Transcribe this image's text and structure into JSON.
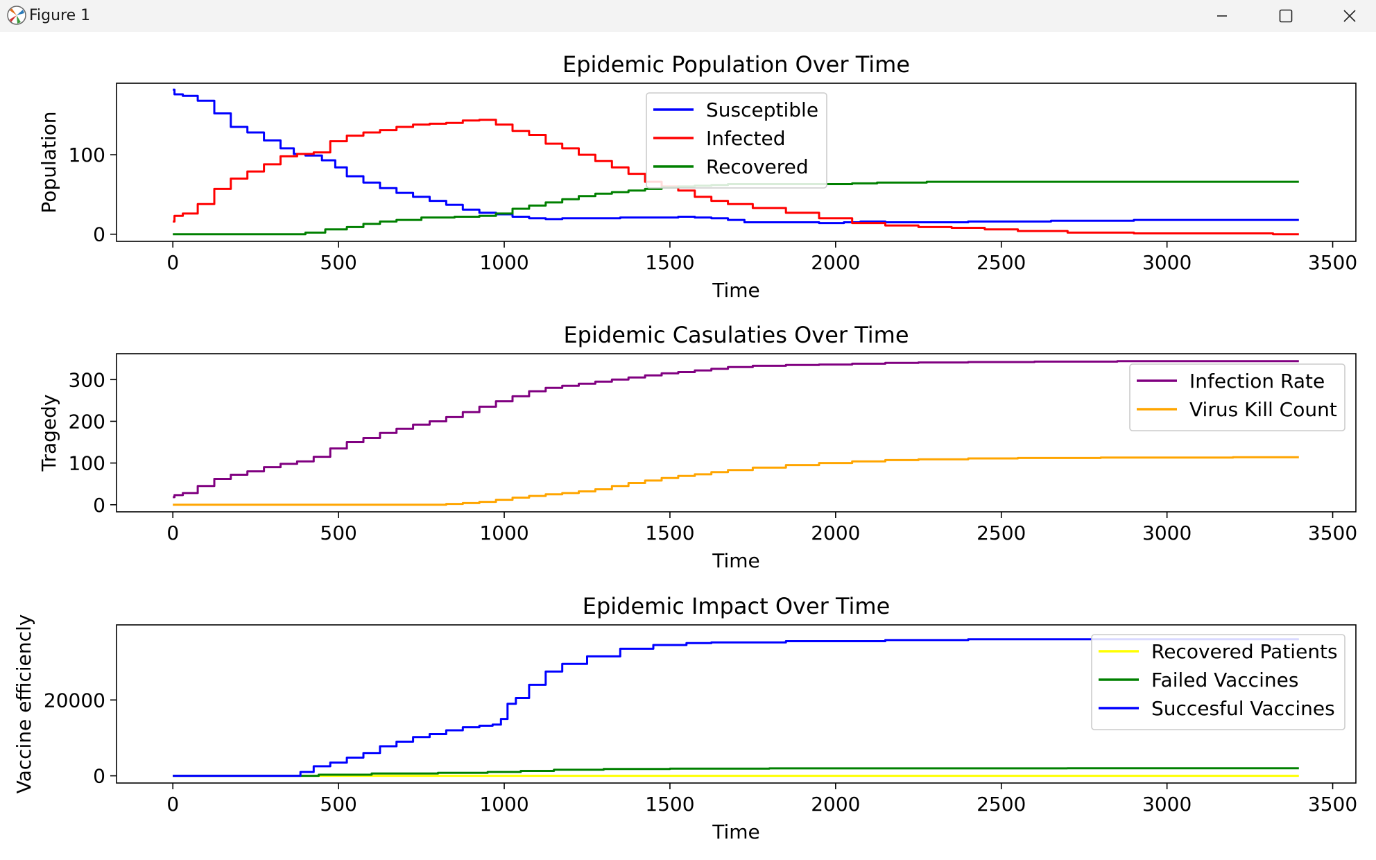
{
  "window": {
    "title": "Figure 1",
    "controls": {
      "minimize": "minimize-icon",
      "maximize": "maximize-icon",
      "close": "close-icon"
    }
  },
  "chart_data": [
    {
      "type": "line",
      "title": "Epidemic Population Over Time",
      "xlabel": "Time",
      "ylabel": "Population",
      "xlim": [
        -170,
        3570
      ],
      "ylim": [
        -9,
        190
      ],
      "xticks": [
        0,
        500,
        1000,
        1500,
        2000,
        2500,
        3000,
        3500
      ],
      "yticks": [
        0,
        100
      ],
      "grid": false,
      "legend_position": "top-center",
      "series": [
        {
          "name": "Susceptible",
          "color": "#0000ff",
          "x": [
            0,
            10,
            50,
            100,
            150,
            200,
            250,
            300,
            350,
            380,
            420,
            480,
            500,
            550,
            600,
            650,
            700,
            750,
            800,
            850,
            900,
            950,
            1000,
            1050,
            1100,
            1150,
            1200,
            1300,
            1400,
            1500,
            1550,
            1600,
            1650,
            1700,
            1750,
            1800,
            1900,
            2000,
            2050,
            2100,
            2200,
            2300,
            2500,
            2800,
            3000,
            3398
          ],
          "y": [
            182,
            176,
            174,
            168,
            152,
            135,
            128,
            118,
            108,
            101,
            99,
            93,
            84,
            73,
            65,
            58,
            52,
            47,
            42,
            37,
            31,
            27,
            25,
            22,
            20,
            19,
            20,
            20,
            21,
            21,
            22,
            21,
            20,
            18,
            15,
            15,
            15,
            14,
            15,
            16,
            15,
            15,
            16,
            17,
            18,
            18
          ]
        },
        {
          "name": "Infected",
          "color": "#ff0000",
          "x": [
            0,
            10,
            50,
            100,
            150,
            200,
            250,
            300,
            350,
            400,
            450,
            500,
            550,
            600,
            650,
            700,
            750,
            800,
            850,
            900,
            950,
            1000,
            1050,
            1100,
            1150,
            1200,
            1250,
            1300,
            1350,
            1400,
            1450,
            1500,
            1550,
            1600,
            1650,
            1700,
            1800,
            1900,
            2000,
            2100,
            2200,
            2300,
            2400,
            2500,
            2600,
            2800,
            3000,
            3300,
            3340,
            3398
          ],
          "y": [
            16,
            23,
            26,
            38,
            57,
            70,
            79,
            88,
            98,
            101,
            103,
            117,
            124,
            128,
            131,
            135,
            138,
            139,
            140,
            143,
            144,
            138,
            130,
            125,
            114,
            108,
            100,
            92,
            84,
            76,
            66,
            60,
            55,
            47,
            42,
            38,
            33,
            27,
            20,
            14,
            11,
            9,
            8,
            6,
            4,
            2,
            1,
            1,
            0,
            0
          ]
        },
        {
          "name": "Recovered",
          "color": "#008000",
          "x": [
            0,
            380,
            420,
            500,
            550,
            600,
            650,
            700,
            800,
            900,
            950,
            1000,
            1050,
            1100,
            1150,
            1200,
            1250,
            1300,
            1350,
            1400,
            1450,
            1500,
            1550,
            1600,
            1650,
            1700,
            1800,
            2000,
            2100,
            2150,
            2400,
            3398
          ],
          "y": [
            0,
            0,
            2,
            6,
            9,
            13,
            16,
            18,
            21,
            22,
            23,
            26,
            32,
            36,
            40,
            44,
            48,
            51,
            53,
            55,
            57,
            59,
            60,
            61,
            62,
            63,
            63,
            63,
            64,
            65,
            66,
            66
          ]
        }
      ]
    },
    {
      "type": "line",
      "title": "Epidemic Casulaties Over Time",
      "xlabel": "Time",
      "ylabel": "Tragedy",
      "xlim": [
        -170,
        3570
      ],
      "ylim": [
        -17,
        362
      ],
      "xticks": [
        0,
        500,
        1000,
        1500,
        2000,
        2500,
        3000,
        3500
      ],
      "yticks": [
        0,
        100,
        200,
        300
      ],
      "grid": false,
      "legend_position": "top-right",
      "series": [
        {
          "name": "Infection Rate",
          "color": "#800080",
          "x": [
            0,
            10,
            50,
            100,
            150,
            200,
            250,
            300,
            350,
            400,
            450,
            500,
            550,
            600,
            650,
            700,
            750,
            800,
            850,
            900,
            950,
            1000,
            1050,
            1100,
            1150,
            1200,
            1250,
            1300,
            1350,
            1400,
            1450,
            1500,
            1550,
            1600,
            1650,
            1700,
            1800,
            1900,
            2000,
            2100,
            2200,
            2300,
            2500,
            2700,
            3000,
            3398
          ],
          "y": [
            18,
            23,
            28,
            45,
            62,
            72,
            80,
            90,
            98,
            104,
            115,
            135,
            150,
            160,
            172,
            182,
            192,
            200,
            210,
            222,
            235,
            248,
            260,
            272,
            280,
            285,
            290,
            295,
            300,
            305,
            310,
            315,
            318,
            322,
            326,
            330,
            333,
            335,
            336,
            338,
            340,
            341,
            342,
            343,
            344,
            344
          ]
        },
        {
          "name": "Virus Kill Count",
          "color": "#ffa500",
          "x": [
            0,
            800,
            850,
            900,
            950,
            1000,
            1050,
            1100,
            1150,
            1200,
            1250,
            1300,
            1350,
            1400,
            1450,
            1500,
            1550,
            1600,
            1650,
            1700,
            1800,
            1900,
            2000,
            2100,
            2200,
            2300,
            2500,
            2600,
            3000,
            3398
          ],
          "y": [
            0,
            0,
            2,
            4,
            7,
            12,
            17,
            21,
            25,
            28,
            32,
            37,
            45,
            52,
            58,
            64,
            69,
            73,
            78,
            83,
            89,
            95,
            100,
            104,
            107,
            109,
            111,
            112,
            113,
            114
          ]
        }
      ]
    },
    {
      "type": "line",
      "title": "Epidemic Impact Over Time",
      "xlabel": "Time",
      "ylabel": "Vaccine efficiencly",
      "xlim": [
        -170,
        3570
      ],
      "ylim": [
        -1900,
        39800
      ],
      "xticks": [
        0,
        500,
        1000,
        1500,
        2000,
        2500,
        3000,
        3500
      ],
      "yticks": [
        0,
        20000
      ],
      "grid": false,
      "legend_position": "top-right",
      "series": [
        {
          "name": "Recovered Patients",
          "color": "#ffff00",
          "x": [
            0,
            3398
          ],
          "y": [
            0,
            0
          ]
        },
        {
          "name": "Failed Vaccines",
          "color": "#008000",
          "x": [
            0,
            380,
            500,
            700,
            900,
            1000,
            1100,
            1200,
            1400,
            1600,
            2000,
            3398
          ],
          "y": [
            0,
            0,
            300,
            600,
            800,
            1000,
            1300,
            1600,
            1800,
            1900,
            1950,
            2000
          ]
        },
        {
          "name": "Succesful Vaccines",
          "color": "#0000ff",
          "x": [
            0,
            370,
            400,
            450,
            500,
            550,
            600,
            650,
            700,
            750,
            800,
            850,
            900,
            950,
            980,
            1000,
            1020,
            1050,
            1100,
            1150,
            1200,
            1300,
            1400,
            1500,
            1600,
            1650,
            1700,
            2000,
            2300,
            2500,
            3000,
            3398
          ],
          "y": [
            0,
            0,
            1000,
            2500,
            3500,
            4800,
            6000,
            7800,
            9000,
            10200,
            11000,
            12000,
            12800,
            13200,
            13500,
            15000,
            19000,
            20500,
            24000,
            27500,
            29500,
            31500,
            33500,
            34500,
            35000,
            35200,
            35200,
            35500,
            35800,
            36000,
            36000,
            36000
          ]
        }
      ]
    }
  ]
}
